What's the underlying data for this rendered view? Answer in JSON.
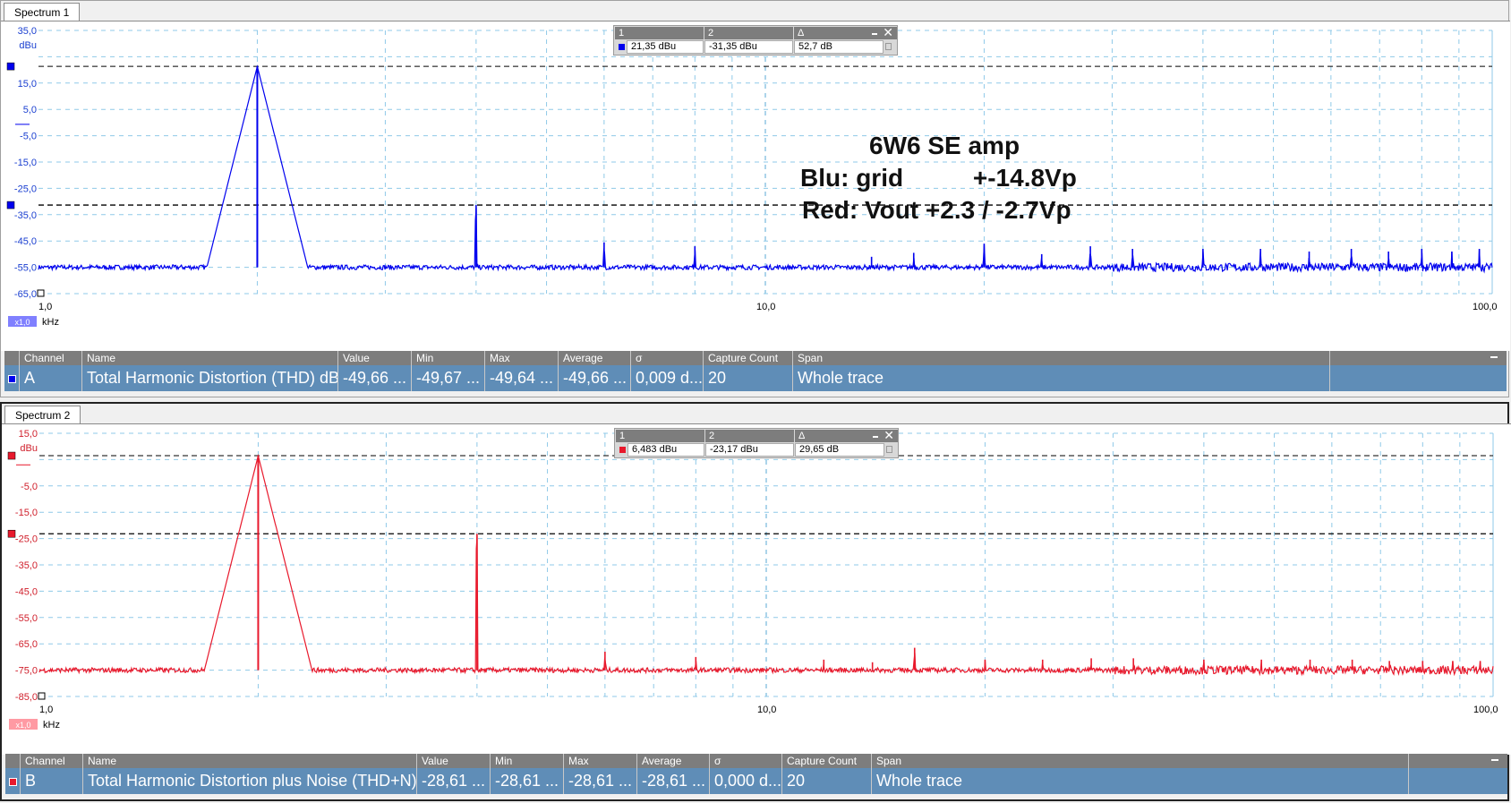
{
  "chart_data": [
    {
      "type": "line",
      "tab": "Spectrum 1",
      "color": "#0000ee",
      "yunit": "dBu",
      "xunit": "kHz",
      "xscale": "log",
      "xlim": [
        1.0,
        100.0
      ],
      "ylim": [
        -65.0,
        35.0
      ],
      "yticks": [
        "35,0",
        "15,0",
        "5,0",
        "-5,0",
        "-15,0",
        "-25,0",
        "-35,0",
        "-45,0",
        "-55,0",
        "-65,0"
      ],
      "xticks": [
        "1,0",
        "10,0",
        "100,0"
      ],
      "scale_badge": "x1,0",
      "cursor_levels": [
        21.35,
        -31.35
      ],
      "noise_floor": -55.0,
      "peaks": [
        {
          "x": 2.0,
          "y": 21.35
        },
        {
          "x": 4.0,
          "y": -31.35
        },
        {
          "x": 6.0,
          "y": -45.5
        },
        {
          "x": 8.0,
          "y": -47.0
        },
        {
          "x": 14.0,
          "y": -51.0
        },
        {
          "x": 16.0,
          "y": -49.5
        },
        {
          "x": 20.0,
          "y": -46.0
        },
        {
          "x": 24.0,
          "y": -50.0
        },
        {
          "x": 28.0,
          "y": -47.0
        },
        {
          "x": 32.0,
          "y": -48.0
        },
        {
          "x": 40.0,
          "y": -48.0
        },
        {
          "x": 48.0,
          "y": -48.0
        },
        {
          "x": 56.0,
          "y": -49.0
        },
        {
          "x": 64.0,
          "y": -48.0
        },
        {
          "x": 72.0,
          "y": -49.0
        },
        {
          "x": 80.0,
          "y": -48.0
        },
        {
          "x": 88.0,
          "y": -49.0
        },
        {
          "x": 96.0,
          "y": -48.0
        }
      ],
      "cursor_box": {
        "h1": "1",
        "h2": "2",
        "hd": "Δ",
        "v1": "21,35 dBu",
        "v2": "-31,35 dBu",
        "vd": "52,7 dB"
      },
      "annotation": [
        "6W6 SE amp",
        "Blu: grid          +-14.8Vp",
        "Red: Vout +2.3 / -2.7Vp"
      ],
      "table": {
        "headers": [
          "Channel",
          "Name",
          "Value",
          "Min",
          "Max",
          "Average",
          "σ",
          "Capture Count",
          "Span"
        ],
        "row": [
          "A",
          "Total Harmonic Distortion (THD) dB",
          "-49,66 ...",
          "-49,67 ...",
          "-49,64 ...",
          "-49,66 ...",
          "0,009 d...",
          "20",
          "Whole trace"
        ]
      }
    },
    {
      "type": "line",
      "tab": "Spectrum 2",
      "color": "#e8192c",
      "yunit": "dBu",
      "xunit": "kHz",
      "xscale": "log",
      "xlim": [
        1.0,
        100.0
      ],
      "ylim": [
        -85.0,
        15.0
      ],
      "yticks": [
        "15,0",
        "-5,0",
        "-15,0",
        "-25,0",
        "-35,0",
        "-45,0",
        "-55,0",
        "-65,0",
        "-75,0",
        "-85,0"
      ],
      "xticks": [
        "1,0",
        "10,0",
        "100,0"
      ],
      "scale_badge": "x1,0",
      "cursor_levels": [
        6.483,
        -23.17
      ],
      "noise_floor": -75.0,
      "peaks": [
        {
          "x": 2.0,
          "y": 6.483
        },
        {
          "x": 4.0,
          "y": -23.17
        },
        {
          "x": 6.0,
          "y": -68.0
        },
        {
          "x": 8.0,
          "y": -70.0
        },
        {
          "x": 12.0,
          "y": -71.0
        },
        {
          "x": 14.0,
          "y": -72.0
        },
        {
          "x": 16.0,
          "y": -66.5
        },
        {
          "x": 20.0,
          "y": -71.0
        },
        {
          "x": 24.0,
          "y": -71.0
        },
        {
          "x": 28.0,
          "y": -70.5
        },
        {
          "x": 32.0,
          "y": -70.5
        },
        {
          "x": 40.0,
          "y": -71.0
        },
        {
          "x": 48.0,
          "y": -71.0
        },
        {
          "x": 56.0,
          "y": -71.0
        },
        {
          "x": 64.0,
          "y": -71.0
        },
        {
          "x": 72.0,
          "y": -71.5
        },
        {
          "x": 80.0,
          "y": -71.5
        },
        {
          "x": 88.0,
          "y": -71.5
        },
        {
          "x": 96.0,
          "y": -71.5
        }
      ],
      "cursor_box": {
        "h1": "1",
        "h2": "2",
        "hd": "Δ",
        "v1": "6,483 dBu",
        "v2": "-23,17 dBu",
        "vd": "29,65 dB"
      },
      "annotation": [],
      "table": {
        "headers": [
          "Channel",
          "Name",
          "Value",
          "Min",
          "Max",
          "Average",
          "σ",
          "Capture Count",
          "Span"
        ],
        "row": [
          "B",
          "Total Harmonic Distortion plus Noise (THD+N)",
          "-28,61 ...",
          "-28,61 ...",
          "-28,61 ...",
          "-28,61 ...",
          "0,000 d...",
          "20",
          "Whole trace"
        ]
      }
    }
  ]
}
